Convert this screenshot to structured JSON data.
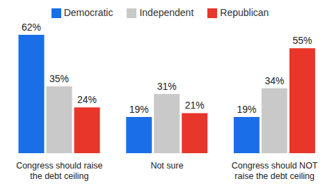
{
  "chart_data": {
    "type": "bar",
    "categories": [
      "Congress should raise the debt ceiling",
      "Not sure",
      "Congress should NOT raise the debt ceiling"
    ],
    "series": [
      {
        "name": "Democratic",
        "color": "#1a6ee8",
        "values": [
          62,
          19,
          19
        ],
        "value_labels": [
          "62%",
          "19%",
          "19%"
        ]
      },
      {
        "name": "Independent",
        "color": "#c9c9c9",
        "values": [
          35,
          31,
          34
        ],
        "value_labels": [
          "35%",
          "31%",
          "34%"
        ]
      },
      {
        "name": "Republican",
        "color": "#e8362b",
        "values": [
          24,
          21,
          55
        ],
        "value_labels": [
          "24%",
          "21%",
          "55%"
        ]
      }
    ],
    "ylim": [
      0,
      62
    ],
    "legend": "top",
    "data_labels": true,
    "tick_labels": "x",
    "grid": false
  }
}
